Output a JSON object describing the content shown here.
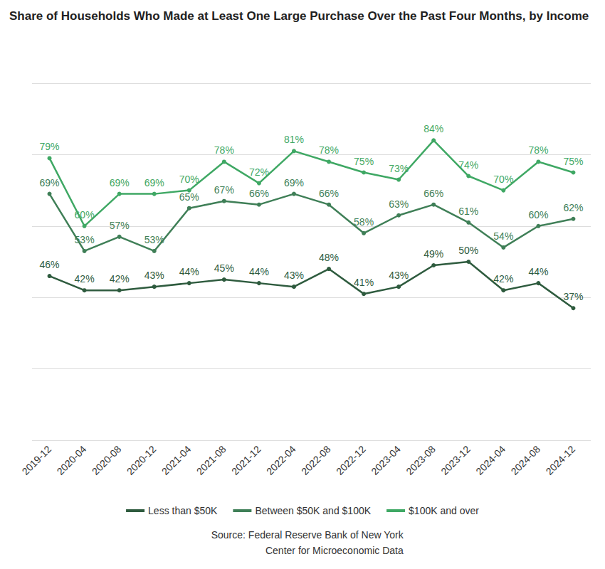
{
  "chart_data": {
    "type": "line",
    "title": "Share of Households Who Made at Least One Large Purchase Over the Past Four Months, by Income",
    "source": [
      "Source: Federal Reserve Bank of New York",
      "Center for Microeconomic Data"
    ],
    "categories": [
      "2019-12",
      "2020-04",
      "2020-08",
      "2020-12",
      "2021-04",
      "2021-08",
      "2021-12",
      "2022-04",
      "2022-08",
      "2022-12",
      "2023-04",
      "2023-08",
      "2023-12",
      "2024-04",
      "2024-08",
      "2024-12"
    ],
    "series": [
      {
        "name": "Less than $50K",
        "color": "#2e5b3e",
        "values": [
          46,
          42,
          42,
          43,
          44,
          45,
          44,
          43,
          48,
          41,
          43,
          49,
          50,
          42,
          44,
          37
        ],
        "value_labels": [
          "46%",
          "42%",
          "42%",
          "43%",
          "44%",
          "45%",
          "44%",
          "43%",
          "48%",
          "41%",
          "43%",
          "49%",
          "50%",
          "42%",
          "44%",
          "37%"
        ]
      },
      {
        "name": "Between $50K and $100K",
        "color": "#3f7f57",
        "values": [
          69,
          53,
          57,
          53,
          65,
          67,
          66,
          69,
          66,
          58,
          63,
          66,
          61,
          54,
          60,
          62
        ],
        "value_labels": [
          "69%",
          "53%",
          "57%",
          "53%",
          "65%",
          "67%",
          "66%",
          "69%",
          "66%",
          "58%",
          "63%",
          "66%",
          "61%",
          "54%",
          "60%",
          "62%"
        ]
      },
      {
        "name": "$100K and over",
        "color": "#3fa864",
        "values": [
          79,
          60,
          69,
          69,
          70,
          78,
          72,
          81,
          78,
          75,
          73,
          84,
          74,
          70,
          78,
          75
        ],
        "value_labels": [
          "79%",
          "60%",
          "69%",
          "69%",
          "70%",
          "78%",
          "72%",
          "81%",
          "78%",
          "75%",
          "73%",
          "84%",
          "74%",
          "70%",
          "78%",
          "75%"
        ]
      }
    ],
    "ylim": [
      0,
      100
    ],
    "yticks": [
      0,
      20,
      40,
      60,
      80,
      100
    ],
    "grid": true,
    "legend": "bottom",
    "data_labels": true,
    "tick_labels": "x",
    "marker": "circle"
  }
}
